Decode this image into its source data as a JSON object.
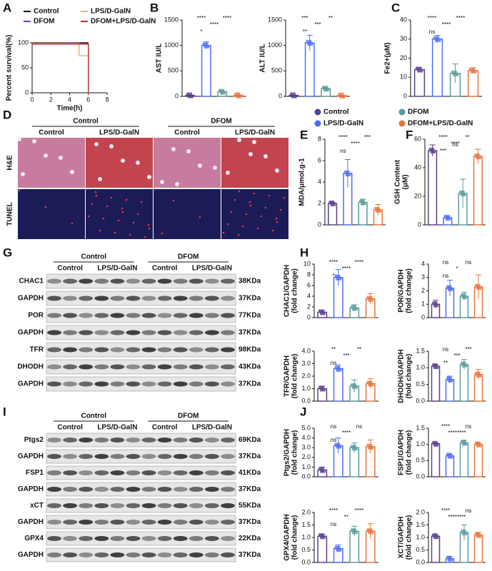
{
  "panel_labels": [
    "A",
    "B",
    "C",
    "D",
    "E",
    "F",
    "G",
    "H",
    "I",
    "J"
  ],
  "groups": [
    {
      "name": "Control",
      "color": "#5b3f8c"
    },
    {
      "name": "LPS/D-GalN",
      "color": "#4f6ef7"
    },
    {
      "name": "DFOM",
      "color": "#5a9a9a"
    },
    {
      "name": "DFOM+LPS/D-GalN",
      "color": "#e8743b"
    }
  ],
  "histology": {
    "groups": [
      "Control",
      "DFOM"
    ],
    "columns": [
      "Control",
      "LPS/D-GalN",
      "Control",
      "LPS/D-GalN"
    ],
    "rows": [
      "H&E",
      "TUNEL"
    ]
  },
  "blots": [
    {
      "groups": [
        "Control",
        "DFOM"
      ],
      "subgroups": [
        "Control",
        "LPS/D-GalN",
        "Control",
        "LPS/D-GalN"
      ],
      "rows": [
        {
          "protein": "CHAC1",
          "size": "38KDa"
        },
        {
          "protein": "GAPDH",
          "size": "37KDa"
        },
        {
          "protein": "POR",
          "size": "77KDa"
        },
        {
          "protein": "GAPDH",
          "size": "37KDa"
        },
        {
          "protein": "TFR",
          "size": "98KDa"
        },
        {
          "protein": "DHODH",
          "size": "43KDa"
        },
        {
          "protein": "GAPDH",
          "size": "37KDa"
        }
      ]
    },
    {
      "groups": [
        "Control",
        "DFOM"
      ],
      "subgroups": [
        "Control",
        "LPS/D-GalN",
        "Control",
        "LPS/D-GalN"
      ],
      "rows": [
        {
          "protein": "Ptgs2",
          "size": "69KDa"
        },
        {
          "protein": "GAPDH",
          "size": "37KDa"
        },
        {
          "protein": "FSP1",
          "size": "41KDa"
        },
        {
          "protein": "GAPDH",
          "size": "37KDa"
        },
        {
          "protein": "xCT",
          "size": "55KDa"
        },
        {
          "protein": "GAPDH",
          "size": "37KDa"
        },
        {
          "protein": "GPX4",
          "size": "22KDa"
        },
        {
          "protein": "GAPDH",
          "size": "37KDa"
        }
      ]
    }
  ],
  "chart_data": [
    {
      "type": "line",
      "xlabel": "Time(h)",
      "ylabel": [
        "Percent survival(%)"
      ],
      "x": [
        0,
        5,
        5,
        6,
        6
      ],
      "xlim": [
        0,
        8
      ],
      "xticks": [
        0,
        2,
        4,
        6,
        8
      ],
      "ylim": [
        0,
        100
      ],
      "yticks": [
        0,
        50,
        100
      ],
      "series": [
        {
          "name": "Control",
          "color": "#111111",
          "values": [
            100,
            100,
            100,
            100,
            100
          ]
        },
        {
          "name": "LPS/D-GalN",
          "color": "#f0b070",
          "values": [
            100,
            100,
            75,
            75,
            0
          ]
        },
        {
          "name": "DFOM",
          "color": "#6a3fb0",
          "values": [
            100,
            100,
            100,
            100,
            100
          ]
        },
        {
          "name": "DFOM+LPS/D-GalN",
          "color": "#c0392b",
          "values": [
            100,
            100,
            100,
            100,
            0
          ]
        }
      ]
    },
    {
      "type": "bar",
      "ylabel": [
        "AST IU/L"
      ],
      "values": [
        20,
        1000,
        90,
        20
      ],
      "errors": [
        5,
        70,
        15,
        5
      ],
      "ylim": [
        0,
        1500
      ],
      "yticks": [
        0,
        500,
        1000,
        1500
      ],
      "annotations": [
        "****",
        "****",
        "****",
        "*"
      ]
    },
    {
      "type": "bar",
      "ylabel": [
        "ALT IU/L"
      ],
      "values": [
        20,
        1050,
        150,
        15
      ],
      "errors": [
        5,
        150,
        20,
        5
      ],
      "ylim": [
        0,
        1500
      ],
      "yticks": [
        0,
        500,
        1000,
        1500
      ],
      "annotations": [
        "***",
        "***",
        "**",
        "**"
      ]
    },
    {
      "type": "bar",
      "ylabel": [
        "Fe2+(μM)"
      ],
      "values": [
        14,
        30,
        12,
        13.5
      ],
      "errors": [
        1,
        2,
        5,
        1.5
      ],
      "ylim": [
        0,
        40
      ],
      "yticks": [
        0,
        10,
        20,
        30,
        40
      ],
      "annotations": [
        "****",
        "****",
        "****",
        "ns"
      ]
    },
    {
      "type": "bar",
      "ylabel": [
        "MDA/μmol.g-1"
      ],
      "values": [
        2,
        4.8,
        2.1,
        1.4
      ],
      "errors": [
        0.1,
        1.3,
        0.3,
        0.5
      ],
      "ylim": [
        0,
        8
      ],
      "yticks": [
        0,
        2,
        4,
        6,
        8
      ],
      "annotations": [
        "****",
        "****",
        "***",
        "ns"
      ]
    },
    {
      "type": "bar",
      "ylabel": [
        "GSH Content",
        "(μM)"
      ],
      "values": [
        52,
        5,
        22,
        48
      ],
      "errors": [
        4,
        1,
        10,
        5
      ],
      "ylim": [
        0,
        60
      ],
      "yticks": [
        0,
        20,
        40,
        60
      ],
      "annotations": [
        "****",
        "****",
        "**",
        "***",
        "ns"
      ]
    },
    {
      "type": "bar",
      "ylabel": [
        "CHAC1/GAPDH",
        "(fold change)"
      ],
      "values": [
        1,
        7.5,
        1.8,
        3.5
      ],
      "errors": [
        0.3,
        1.5,
        0.6,
        1
      ],
      "ylim": [
        0,
        10
      ],
      "yticks": [
        0,
        2,
        4,
        6,
        8,
        10
      ],
      "annotations": [
        "****",
        "****",
        "****",
        "*"
      ]
    },
    {
      "type": "bar",
      "ylabel": [
        "POR/GAPDH",
        "(fold change)"
      ],
      "values": [
        1,
        2.2,
        1.6,
        2.3
      ],
      "errors": [
        0.3,
        0.6,
        0.3,
        0.9
      ],
      "ylim": [
        0,
        4
      ],
      "yticks": [
        0,
        1,
        2,
        3,
        4
      ],
      "annotations": [
        "ns",
        "*",
        "ns",
        "ns"
      ]
    },
    {
      "type": "bar",
      "ylabel": [
        "TFR/GAPDH",
        "(fold change)"
      ],
      "values": [
        1,
        2.6,
        1.2,
        1.4
      ],
      "errors": [
        0.2,
        0.3,
        0.5,
        0.4
      ],
      "ylim": [
        0,
        4
      ],
      "yticks": [
        {
          "value": 0,
          "label": "0.0"
        },
        {
          "value": 1,
          "label": "1.0"
        },
        {
          "value": 2,
          "label": "2.0"
        },
        {
          "value": 3,
          "label": "3.0"
        },
        {
          "value": 4,
          "label": "4.0"
        }
      ],
      "annotations": [
        "**",
        "***",
        "**",
        "ns"
      ]
    },
    {
      "type": "bar",
      "ylabel": [
        "DHODH/GAPDH",
        "(fold change)"
      ],
      "values": [
        1.05,
        0.65,
        1.1,
        0.8
      ],
      "errors": [
        0.05,
        0.1,
        0.15,
        0.15
      ],
      "ylim": [
        0,
        1.5
      ],
      "yticks": [
        {
          "value": 0,
          "label": "0.0"
        },
        {
          "value": 0.5,
          "label": "0.5"
        },
        {
          "value": 1,
          "label": "1.0"
        },
        {
          "value": 1.5,
          "label": "1.5"
        }
      ],
      "annotations": [
        "ns",
        "***",
        "***",
        "**"
      ]
    },
    {
      "type": "bar",
      "ylabel": [
        "Ptgs2/GAPDH",
        "(fold change)"
      ],
      "values": [
        0.7,
        3.2,
        3.0,
        3.1
      ],
      "errors": [
        0.3,
        0.8,
        0.5,
        0.7
      ],
      "ylim": [
        0,
        5
      ],
      "yticks": [
        {
          "value": 0,
          "label": "0.0"
        },
        {
          "value": 1,
          "label": "1.0"
        },
        {
          "value": 2,
          "label": "2.0"
        },
        {
          "value": 3,
          "label": "3.0"
        },
        {
          "value": 4,
          "label": "4.0"
        },
        {
          "value": 5,
          "label": "5.0"
        }
      ],
      "annotations": [
        "ns",
        "****",
        "ns",
        "ns"
      ]
    },
    {
      "type": "bar",
      "ylabel": [
        "FSP1/GAPDH",
        "(fold change)"
      ],
      "values": [
        1.02,
        0.65,
        1.05,
        1.0
      ],
      "errors": [
        0.03,
        0.05,
        0.08,
        0.05
      ],
      "ylim": [
        0,
        1.5
      ],
      "yticks": [
        {
          "value": 0,
          "label": "0.0"
        },
        {
          "value": 0.5,
          "label": "0.5"
        },
        {
          "value": 1,
          "label": "1.0"
        },
        {
          "value": 1.5,
          "label": "1.5"
        }
      ],
      "annotations": [
        "****",
        "********",
        "ns"
      ]
    },
    {
      "type": "bar",
      "ylabel": [
        "GPX4/GAPDH",
        "(fold change)"
      ],
      "values": [
        1.05,
        0.55,
        1.25,
        1.25
      ],
      "errors": [
        0.08,
        0.15,
        0.2,
        0.3
      ],
      "ylim": [
        0,
        2
      ],
      "yticks": [
        {
          "value": 0,
          "label": "0.0"
        },
        {
          "value": 0.5,
          "label": "0.5"
        },
        {
          "value": 1,
          "label": "1.0"
        },
        {
          "value": 1.5,
          "label": "1.5"
        },
        {
          "value": 2,
          "label": "2.0"
        }
      ],
      "annotations": [
        "****",
        "**",
        "****",
        "ns"
      ]
    },
    {
      "type": "bar",
      "ylabel": [
        "XCT/GAPDH",
        "(fold change)"
      ],
      "values": [
        1.05,
        0.15,
        1.2,
        1.1
      ],
      "errors": [
        0.05,
        0.08,
        0.3,
        0.1
      ],
      "ylim": [
        0,
        2
      ],
      "yticks": [
        {
          "value": 0,
          "label": "0.0"
        },
        {
          "value": 0.5,
          "label": "0.5"
        },
        {
          "value": 1,
          "label": "1.0"
        },
        {
          "value": 1.5,
          "label": "1.5"
        },
        {
          "value": 2,
          "label": "2.0"
        }
      ],
      "annotations": [
        "****",
        "********",
        "ns"
      ]
    }
  ]
}
